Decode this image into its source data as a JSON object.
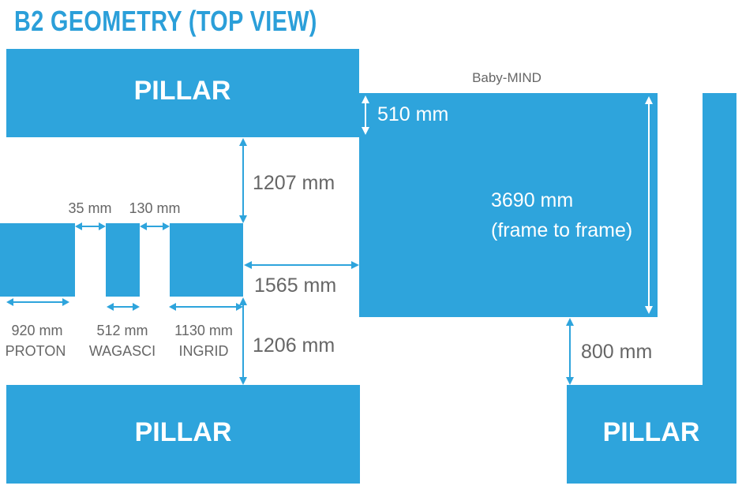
{
  "title": "B2 GEOMETRY (TOP VIEW)",
  "pillar_label": "PILLAR",
  "baby_mind": {
    "name": "Baby-MIND",
    "depth_label": "510 mm",
    "height_label_line1": "3690 mm",
    "height_label_line2": "(frame to frame)"
  },
  "detectors": [
    {
      "name": "PROTON",
      "size": "920 mm"
    },
    {
      "name": "WAGASCI",
      "size": "512 mm"
    },
    {
      "name": "INGRID",
      "size": "1130 mm"
    }
  ],
  "gaps": {
    "proton_wagasci": "35 mm",
    "wagasci_ingrid": "130 mm"
  },
  "distances": {
    "top": "1207 mm",
    "middle": "1565 mm",
    "bottom": "1206 mm",
    "right": "800 mm"
  },
  "colors": {
    "block": "#2ea4dc",
    "title": "#2b9fd9",
    "label": "#666666"
  }
}
